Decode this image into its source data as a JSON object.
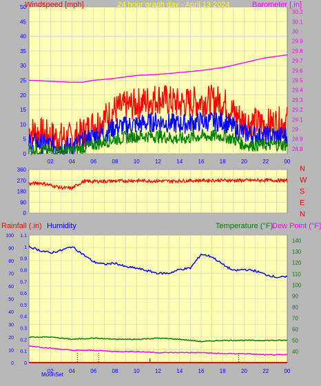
{
  "header": {
    "left_label": "Windspeed [mph]",
    "title": "24 hour graph day - April 13 2024",
    "right_label": "Barometer [.in]"
  },
  "colors": {
    "background": "#b8b8b8",
    "plot_bg": "#ffffb4",
    "gust": "#ff0000",
    "avg_wind": "#0000ff",
    "min_wind": "#008000",
    "barometer": "#ff00ff",
    "direction": "#ff0000",
    "rain": "#ff0000",
    "humidity": "#0000ff",
    "temperature": "#008000",
    "dew_point": "#ff00ff",
    "axis_text": "#0000ff",
    "grid": "#c8c8c8"
  },
  "panel3_labels": {
    "rain_label": "Rainfall (.in)",
    "humidity_label": "Humidity",
    "temp_label": "Temperature (°F)",
    "dew_label": "Dew Point (°F)"
  },
  "direction_labels": [
    "N",
    "W",
    "S",
    "E",
    "N"
  ],
  "moon_label": "MoonSet",
  "chart_data": [
    {
      "type": "line",
      "name": "wind_barometer",
      "x_ticks": [
        "02",
        "04",
        "06",
        "08",
        "10",
        "12",
        "14",
        "16",
        "18",
        "20",
        "22",
        "00"
      ],
      "x_range_hours": [
        0,
        24
      ],
      "left_axis": {
        "ticks": [
          "0",
          "5",
          "10",
          "15",
          "20",
          "25",
          "30",
          "35",
          "40",
          "45",
          "50"
        ],
        "ylim": [
          0,
          50
        ]
      },
      "right_axis": {
        "ticks": [
          "28.8",
          "28.9",
          "29",
          "29.1",
          "29.2",
          "29.3",
          "29.4",
          "29.5",
          "29.6",
          "29.7",
          "29.8",
          "29.9",
          "30",
          "30.1",
          "30.2"
        ],
        "ylim": [
          28.75,
          30.25
        ]
      },
      "series": [
        {
          "key": "gust",
          "hours": [
            0,
            2,
            4,
            5,
            6,
            7,
            8,
            10,
            12,
            14,
            16,
            18,
            19,
            20,
            22,
            24
          ],
          "values": [
            8,
            6,
            5,
            7,
            10,
            12,
            15,
            17,
            19,
            17,
            18,
            18,
            14,
            11,
            10,
            11
          ]
        },
        {
          "key": "avg",
          "hours": [
            0,
            2,
            4,
            5,
            6,
            7,
            8,
            10,
            12,
            14,
            16,
            18,
            19,
            20,
            22,
            24
          ],
          "values": [
            4,
            3,
            2.5,
            4,
            6,
            7,
            9,
            10,
            11,
            10,
            11,
            11,
            9,
            7,
            6,
            6
          ]
        },
        {
          "key": "min",
          "hours": [
            0,
            2,
            4,
            5,
            6,
            7,
            8,
            10,
            12,
            14,
            16,
            18,
            19,
            20,
            22,
            24
          ],
          "values": [
            1.5,
            1,
            1,
            2,
            3,
            4,
            5,
            6,
            6,
            5,
            6,
            6,
            5,
            3,
            3,
            3
          ]
        },
        {
          "key": "barometer",
          "hours": [
            0,
            2,
            4,
            5,
            6,
            8,
            10,
            12,
            14,
            16,
            18,
            20,
            22,
            24
          ],
          "values": [
            29.5,
            29.49,
            29.48,
            29.48,
            29.5,
            29.52,
            29.55,
            29.56,
            29.58,
            29.6,
            29.63,
            29.68,
            29.73,
            29.76
          ]
        }
      ]
    },
    {
      "type": "line",
      "name": "wind_direction",
      "y_ticks": [
        "360",
        "270",
        "180",
        "90",
        "0"
      ],
      "ylim": [
        0,
        360
      ],
      "series": [
        {
          "key": "direction",
          "hours": [
            0,
            1,
            2,
            3,
            4,
            5,
            6,
            8,
            10,
            12,
            14,
            16,
            18,
            20,
            22,
            24
          ],
          "values": [
            240,
            250,
            230,
            210,
            205,
            260,
            262,
            265,
            268,
            265,
            266,
            270,
            270,
            270,
            272,
            268
          ]
        }
      ]
    },
    {
      "type": "line",
      "name": "rain_humidity_temp",
      "humidity_axis": {
        "ticks": [
          "100",
          "90",
          "80",
          "70",
          "60",
          "50",
          "40",
          "30",
          "20",
          "10",
          "0"
        ],
        "ylim": [
          0,
          100
        ]
      },
      "rain_axis": {
        "ticks": [
          "1.1",
          "1",
          "0.9",
          "0.8",
          "0.7",
          "0.6",
          "0.5",
          "0.4",
          "0.3",
          "0.2",
          "0.1",
          "0"
        ],
        "ylim": [
          0,
          1.1
        ]
      },
      "temp_axis": {
        "ticks": [
          "140",
          "130",
          "120",
          "110",
          "100",
          "90",
          "80",
          "70",
          "60",
          "50",
          "40"
        ],
        "ylim": [
          30,
          145
        ]
      },
      "series": [
        {
          "key": "humidity",
          "hours": [
            0,
            1,
            2,
            3,
            4,
            5,
            6,
            7,
            8,
            9,
            10,
            11,
            12,
            13,
            14,
            15,
            16,
            17,
            18,
            19,
            20,
            21,
            22,
            23,
            24
          ],
          "values": [
            91,
            88,
            86,
            88,
            91,
            85,
            79,
            77,
            78,
            75,
            74,
            72,
            70,
            70,
            73,
            74,
            85,
            83,
            77,
            72,
            73,
            72,
            69,
            67,
            67
          ]
        },
        {
          "key": "temperature",
          "hours": [
            0,
            2,
            4,
            6,
            8,
            10,
            12,
            14,
            16,
            18,
            20,
            22,
            24
          ],
          "values": [
            53,
            53,
            51,
            52,
            51,
            51,
            52,
            51,
            49,
            50,
            50,
            50,
            50
          ]
        },
        {
          "key": "dew_point",
          "hours": [
            0,
            2,
            4,
            6,
            8,
            10,
            12,
            14,
            16,
            18,
            20,
            22,
            24
          ],
          "values": [
            45,
            43,
            41,
            41,
            40,
            40,
            39,
            39,
            39,
            38,
            38,
            37,
            37
          ]
        },
        {
          "key": "rain",
          "hours": [
            0,
            24
          ],
          "values": [
            0,
            0
          ]
        }
      ]
    }
  ]
}
